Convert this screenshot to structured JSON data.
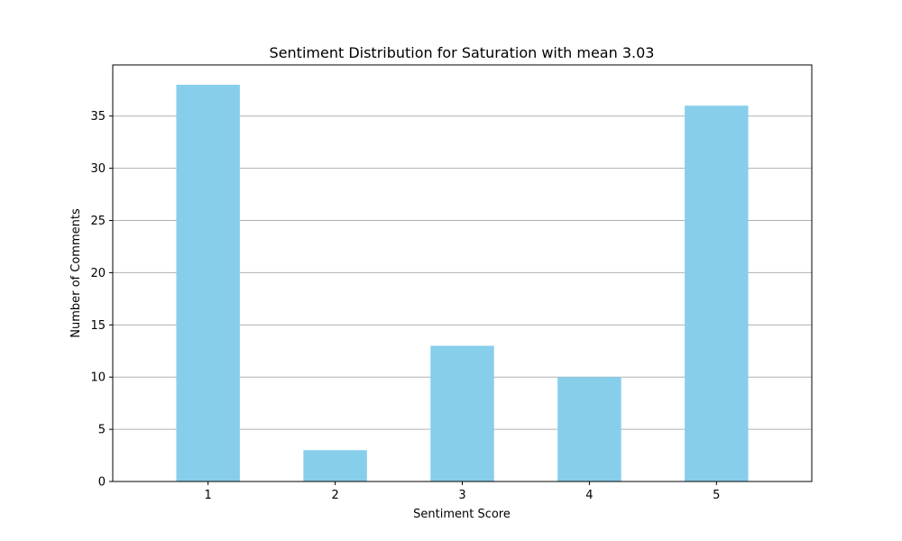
{
  "chart_data": {
    "type": "bar",
    "title": "Sentiment Distribution for Saturation with mean 3.03",
    "xlabel": "Sentiment Score",
    "ylabel": "Number of Comments",
    "categories": [
      "1",
      "2",
      "3",
      "4",
      "5"
    ],
    "values": [
      38,
      3,
      13,
      10,
      36
    ],
    "ylim": [
      0,
      39.9
    ],
    "yticks": [
      0,
      5,
      10,
      15,
      20,
      25,
      30,
      35
    ],
    "grid": "y-axis",
    "bar_color": "#87CEEB",
    "grid_color": "#b0b0b0"
  }
}
